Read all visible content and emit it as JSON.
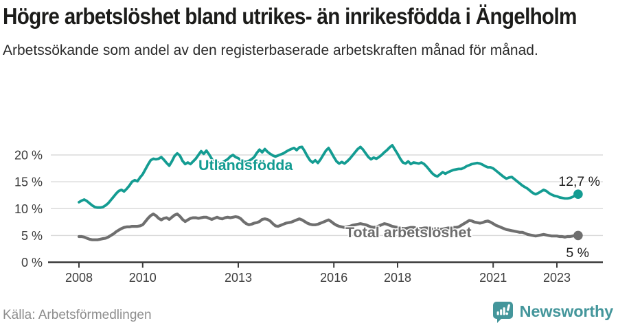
{
  "header": {
    "title": "Högre arbetslöshet bland utrikes- än inrikesfödda i Ängelholm",
    "subtitle": "Arbetssökande som andel av den registerbaserade arbetskraften månad för månad."
  },
  "footer": {
    "source": "Källa: Arbetsförmedlingen",
    "brand": "Newsworthy"
  },
  "chart_data": {
    "type": "line",
    "title": "Högre arbetslöshet bland utrikes- än inrikesfödda i Ängelholm",
    "subtitle": "Arbetssökande som andel av den registerbaserade arbetskraften månad för månad.",
    "x_unit": "month",
    "x_start": "2008-01",
    "x_end": "2023-09",
    "x_ticks": [
      2008,
      2010,
      2013,
      2016,
      2018,
      2021,
      2023
    ],
    "y_ticks": [
      0,
      5,
      10,
      15,
      20
    ],
    "y_tick_suffix": " %",
    "ylim": [
      0,
      22.5
    ],
    "grid": true,
    "legend_position": "inline-labels",
    "series": [
      {
        "name": "Utlandsfödda",
        "color": "#149c92",
        "end_label": "12,7 %",
        "last_value": 12.7,
        "values": [
          11.2,
          11.5,
          11.7,
          11.4,
          11.0,
          10.6,
          10.3,
          10.2,
          10.2,
          10.3,
          10.6,
          11.0,
          11.6,
          12.2,
          12.8,
          13.3,
          13.5,
          13.2,
          13.7,
          14.3,
          15.0,
          15.3,
          15.1,
          15.8,
          16.4,
          17.3,
          18.2,
          19.0,
          19.3,
          19.2,
          19.3,
          19.6,
          19.1,
          18.5,
          18.0,
          18.8,
          19.8,
          20.3,
          19.9,
          18.9,
          18.3,
          18.6,
          18.3,
          18.8,
          19.3,
          20.0,
          20.7,
          20.2,
          20.8,
          20.1,
          19.3,
          18.4,
          18.7,
          18.4,
          18.6,
          18.9,
          19.2,
          19.7,
          20.0,
          19.6,
          19.4,
          19.0,
          18.8,
          18.7,
          18.9,
          19.2,
          19.6,
          20.4,
          21.0,
          20.5,
          21.1,
          20.6,
          20.2,
          19.9,
          19.7,
          19.9,
          20.1,
          20.3,
          20.6,
          20.9,
          21.1,
          21.3,
          20.9,
          21.4,
          21.5,
          20.7,
          19.8,
          19.0,
          18.6,
          19.0,
          18.5,
          19.2,
          20.0,
          20.8,
          21.3,
          20.5,
          19.6,
          18.8,
          18.4,
          18.7,
          18.4,
          18.8,
          19.3,
          19.9,
          20.5,
          21.1,
          21.5,
          21.0,
          20.3,
          19.6,
          19.2,
          19.5,
          19.3,
          19.6,
          20.0,
          20.5,
          20.9,
          21.4,
          21.8,
          21.0,
          20.2,
          19.3,
          18.6,
          18.4,
          18.8,
          18.3,
          18.6,
          18.5,
          18.4,
          18.6,
          18.3,
          17.8,
          17.2,
          16.6,
          16.2,
          16.0,
          16.4,
          16.8,
          16.5,
          16.8,
          17.0,
          17.2,
          17.3,
          17.4,
          17.4,
          17.6,
          17.9,
          18.1,
          18.3,
          18.4,
          18.5,
          18.4,
          18.2,
          17.9,
          17.7,
          17.7,
          17.5,
          17.1,
          16.7,
          16.3,
          15.9,
          15.6,
          15.8,
          15.9,
          15.5,
          15.1,
          14.7,
          14.3,
          14.0,
          13.7,
          13.3,
          12.9,
          12.7,
          12.9,
          13.2,
          13.5,
          13.3,
          12.9,
          12.6,
          12.4,
          12.3,
          12.1,
          12.0,
          11.9,
          11.9,
          12.0,
          12.2,
          12.5,
          12.7
        ]
      },
      {
        "name": "Total arbetslöshet",
        "color": "#6f6f6f",
        "end_label": "5 %",
        "last_value": 5.0,
        "values": [
          4.8,
          4.8,
          4.7,
          4.5,
          4.3,
          4.2,
          4.2,
          4.2,
          4.3,
          4.4,
          4.5,
          4.7,
          5.0,
          5.3,
          5.7,
          6.0,
          6.3,
          6.5,
          6.6,
          6.6,
          6.7,
          6.7,
          6.7,
          6.8,
          7.0,
          7.6,
          8.2,
          8.7,
          9.0,
          8.7,
          8.2,
          7.9,
          8.2,
          8.3,
          8.0,
          8.4,
          8.8,
          9.0,
          8.6,
          8.0,
          7.6,
          7.9,
          8.2,
          8.3,
          8.3,
          8.2,
          8.3,
          8.4,
          8.4,
          8.2,
          8.0,
          8.2,
          8.4,
          8.2,
          8.1,
          8.3,
          8.4,
          8.3,
          8.4,
          8.5,
          8.4,
          8.1,
          7.6,
          7.2,
          7.0,
          7.1,
          7.3,
          7.4,
          7.6,
          8.0,
          8.1,
          8.0,
          7.7,
          7.2,
          6.8,
          6.7,
          6.9,
          7.1,
          7.3,
          7.4,
          7.5,
          7.7,
          7.9,
          8.1,
          7.9,
          7.6,
          7.3,
          7.1,
          7.0,
          7.0,
          7.1,
          7.3,
          7.5,
          7.7,
          7.9,
          7.6,
          7.2,
          6.9,
          6.7,
          6.6,
          6.5,
          6.6,
          6.7,
          6.9,
          7.0,
          7.1,
          7.2,
          7.1,
          7.0,
          6.8,
          6.6,
          6.5,
          6.6,
          6.8,
          7.0,
          7.2,
          7.1,
          6.9,
          6.7,
          6.6,
          6.5,
          6.4,
          6.3,
          6.3,
          6.4,
          6.5,
          6.5,
          6.4,
          6.3,
          6.3,
          6.4,
          6.4,
          6.3,
          6.2,
          6.2,
          6.1,
          6.1,
          6.2,
          6.3,
          6.4,
          6.4,
          6.5,
          6.5,
          6.6,
          6.9,
          7.2,
          7.5,
          7.8,
          7.7,
          7.5,
          7.4,
          7.3,
          7.4,
          7.6,
          7.7,
          7.5,
          7.2,
          6.9,
          6.7,
          6.5,
          6.3,
          6.1,
          6.0,
          5.9,
          5.8,
          5.7,
          5.6,
          5.6,
          5.4,
          5.2,
          5.1,
          5.0,
          4.9,
          5.0,
          5.1,
          5.2,
          5.1,
          5.0,
          4.9,
          4.9,
          4.9,
          4.8,
          4.8,
          4.7,
          4.8,
          4.8,
          4.9,
          5.0,
          5.0
        ]
      }
    ]
  }
}
